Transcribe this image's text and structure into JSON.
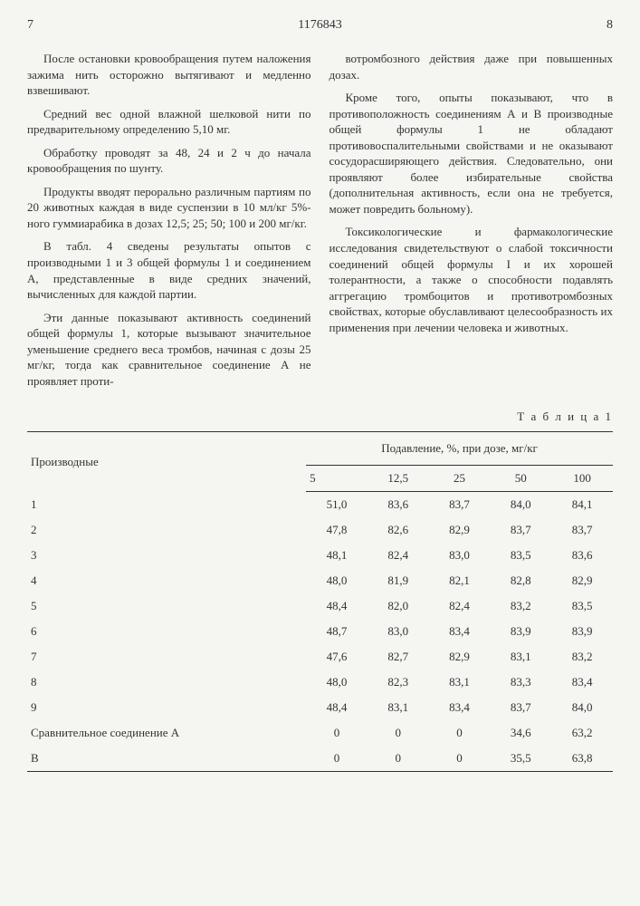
{
  "header": {
    "page_left": "7",
    "doc_number": "1176843",
    "page_right": "8"
  },
  "left_col": {
    "p1": "После остановки кровообращения путем наложения зажима нить осторожно вытягивают и медленно взвешивают.",
    "p2": "Средний вес одной влажной шелковой нити по предварительному определению 5,10 мг.",
    "p3": "Обработку проводят за 48, 24 и 2 ч до начала кровообращения по шунту.",
    "p4": "Продукты вводят перорально различным партиям по 20 животных каждая в виде суспензии в 10 мл/кг 5%-ного гуммиарабика в дозах 12,5; 25; 50; 100 и 200 мг/кг.",
    "p5": "В табл. 4 сведены результаты опытов с производными 1 и 3 общей формулы 1 и соединением А, представленные в виде средних значений, вычисленных для каждой партии.",
    "p6": "Эти данные показывают активность соединений общей формулы 1, которые вызывают значительное уменьшение среднего веса тромбов, начиная с дозы 25 мг/кг, тогда как сравнительное соединение А не проявляет проти-"
  },
  "right_col": {
    "p1": "вотромбозного действия даже при повышенных дозах.",
    "p2": "Кроме того, опыты показывают, что в противоположность соединениям А и В производные общей формулы 1 не обладают противовоспалительными свойствами и не оказывают сосудорасширяющего действия. Следовательно, они проявляют более избирательные свойства (дополнительная активность, если она не требуется, может повредить больному).",
    "p3": "Токсикологические и фармакологические исследования свидетельствуют о слабой токсичности соединений общей формулы I и их хорошей толерантности, а также о способности подавлять аггрегацию тромбоцитов и противотромбозных свойствах, которые обуславливают целесообразность их применения при лечении человека и животных."
  },
  "line_markers": [
    "5",
    "10",
    "15",
    "20",
    "25"
  ],
  "table": {
    "caption": "Т а б л и ц а  1",
    "header_main": "Производные",
    "header_group": "Подавление, %, при дозе, мг/кг",
    "doses": [
      "5",
      "12,5",
      "25",
      "50",
      "100"
    ],
    "rows": [
      {
        "label": "1",
        "v": [
          "51,0",
          "83,6",
          "83,7",
          "84,0",
          "84,1"
        ]
      },
      {
        "label": "2",
        "v": [
          "47,8",
          "82,6",
          "82,9",
          "83,7",
          "83,7"
        ]
      },
      {
        "label": "3",
        "v": [
          "48,1",
          "82,4",
          "83,0",
          "83,5",
          "83,6"
        ]
      },
      {
        "label": "4",
        "v": [
          "48,0",
          "81,9",
          "82,1",
          "82,8",
          "82,9"
        ]
      },
      {
        "label": "5",
        "v": [
          "48,4",
          "82,0",
          "82,4",
          "83,2",
          "83,5"
        ]
      },
      {
        "label": "6",
        "v": [
          "48,7",
          "83,0",
          "83,4",
          "83,9",
          "83,9"
        ]
      },
      {
        "label": "7",
        "v": [
          "47,6",
          "82,7",
          "82,9",
          "83,1",
          "83,2"
        ]
      },
      {
        "label": "8",
        "v": [
          "48,0",
          "82,3",
          "83,1",
          "83,3",
          "83,4"
        ]
      },
      {
        "label": "9",
        "v": [
          "48,4",
          "83,1",
          "83,4",
          "83,7",
          "84,0"
        ]
      },
      {
        "label": "Сравнительное соединение А",
        "v": [
          "0",
          "0",
          "0",
          "34,6",
          "63,2"
        ]
      },
      {
        "label": "В",
        "v": [
          "0",
          "0",
          "0",
          "35,5",
          "63,8"
        ]
      }
    ]
  }
}
